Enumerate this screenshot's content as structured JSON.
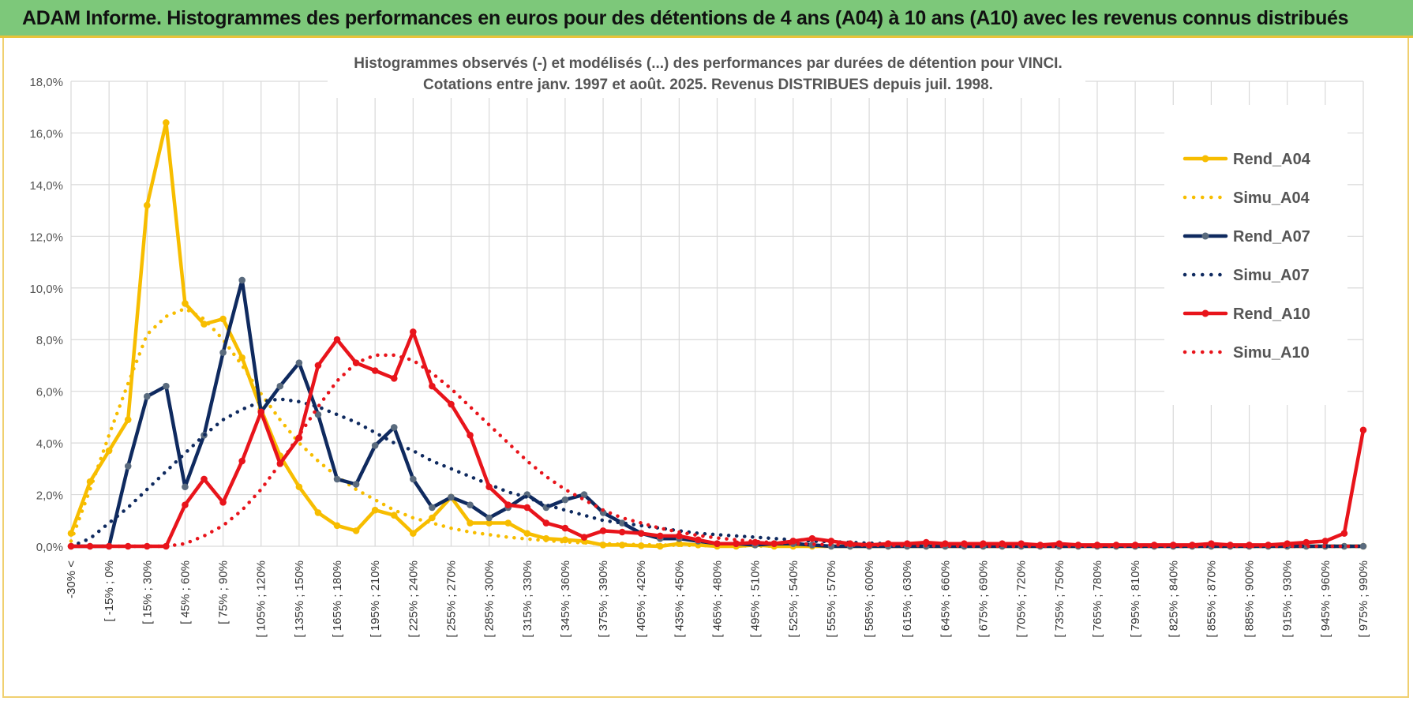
{
  "banner": {
    "title": "ADAM Informe. Histogrammes des performances en euros pour des détentions de 4 ans (A04) à 10 ans (A10) avec les revenus connus distribués",
    "color": "#7dc87a"
  },
  "chart_data": {
    "type": "line",
    "title": "Histogrammes observés (-) et modélisés (...) des performances par durées de détention pour VINCI.",
    "subtitle": "Cotations entre janv. 1997 et août. 2025. Revenus DISTRIBUES depuis juil. 1998.",
    "xlabel": "",
    "ylabel": "",
    "ylim": [
      0,
      18
    ],
    "yticks": [
      "0,0%",
      "2,0%",
      "4,0%",
      "6,0%",
      "8,0%",
      "10,0%",
      "12,0%",
      "14,0%",
      "16,0%",
      "18,0%"
    ],
    "grid": true,
    "legend_position": "top-right",
    "category_labels": [
      "-30% <",
      "[ -15% ; 0%",
      "[ 15% ; 30%",
      "[ 45% ; 60%",
      "[ 75% ; 90%",
      "[ 105% ; 120%",
      "[ 135% ; 150%",
      "[ 165% ; 180%",
      "[ 195% ; 210%",
      "[ 225% ; 240%",
      "[ 255% ; 270%",
      "[ 285% ; 300%",
      "[ 315% ; 330%",
      "[ 345% ; 360%",
      "[ 375% ; 390%",
      "[ 405% ; 420%",
      "[ 435% ; 450%",
      "[ 465% ; 480%",
      "[ 495% ; 510%",
      "[ 525% ; 540%",
      "[ 555% ; 570%",
      "[ 585% ; 600%",
      "[ 615% ; 630%",
      "[ 645% ; 660%",
      "[ 675% ; 690%",
      "[ 705% ; 720%",
      "[ 735% ; 750%",
      "[ 765% ; 780%",
      "[ 795% ; 810%",
      "[ 825% ; 840%",
      "[ 855% ; 870%",
      "[ 885% ; 900%",
      "[ 915% ; 930%",
      "[ 945% ; 960%",
      "[ 975% ; 990%"
    ],
    "num_categories": 69,
    "series": [
      {
        "name": "Rend_A04",
        "color": "#f7bd00",
        "style": "solid",
        "values": [
          0.5,
          2.5,
          3.7,
          4.9,
          13.2,
          16.4,
          9.4,
          8.6,
          8.8,
          7.3,
          5.3,
          3.5,
          2.3,
          1.3,
          0.8,
          0.6,
          1.4,
          1.2,
          0.5,
          1.1,
          1.9,
          0.9,
          0.9,
          0.9,
          0.5,
          0.3,
          0.25,
          0.2,
          0.05,
          0.05,
          0.02,
          0,
          0.1,
          0.05,
          0,
          0,
          0.05,
          0,
          0,
          0,
          0,
          0,
          0,
          0,
          0,
          0,
          0,
          0,
          0,
          0,
          0,
          0,
          0,
          0,
          0,
          0,
          0,
          0,
          0,
          0,
          0,
          0,
          0,
          0,
          0,
          0,
          0,
          0,
          0
        ]
      },
      {
        "name": "Simu_A04",
        "color": "#f7bd00",
        "style": "dotted",
        "values": [
          0.2,
          2.2,
          4.3,
          6.3,
          8.2,
          8.9,
          9.2,
          8.8,
          8.0,
          7.0,
          5.9,
          4.9,
          4.0,
          3.3,
          2.7,
          2.2,
          1.8,
          1.4,
          1.1,
          0.9,
          0.7,
          0.55,
          0.45,
          0.35,
          0.28,
          0.22,
          0.17,
          0.13,
          0.1,
          0.08,
          0.06,
          0.05,
          0.04,
          0.03,
          0.02,
          0.02,
          0.01,
          0.01,
          0.01,
          0,
          0,
          0,
          0,
          0,
          0,
          0,
          0,
          0,
          0,
          0,
          0,
          0,
          0,
          0,
          0,
          0,
          0,
          0,
          0,
          0,
          0,
          0,
          0,
          0,
          0,
          0,
          0,
          0,
          0
        ]
      },
      {
        "name": "Rend_A07",
        "color": "#0f2a5f",
        "style": "solid",
        "values": [
          0,
          0,
          0,
          3.1,
          5.8,
          6.2,
          2.3,
          4.3,
          7.5,
          10.3,
          5.2,
          6.2,
          7.1,
          5.1,
          2.6,
          2.4,
          3.9,
          4.6,
          2.6,
          1.5,
          1.9,
          1.6,
          1.1,
          1.5,
          2.0,
          1.5,
          1.8,
          2.0,
          1.3,
          0.9,
          0.5,
          0.3,
          0.3,
          0.2,
          0.1,
          0.1,
          0.05,
          0.1,
          0.1,
          0.05,
          0,
          0,
          0,
          0,
          0,
          0,
          0,
          0,
          0,
          0,
          0,
          0,
          0,
          0,
          0,
          0,
          0,
          0,
          0,
          0,
          0,
          0,
          0,
          0,
          0,
          0,
          0,
          0,
          0
        ]
      },
      {
        "name": "Simu_A07",
        "color": "#0f2a5f",
        "style": "dotted",
        "values": [
          0,
          0.3,
          0.9,
          1.5,
          2.2,
          2.9,
          3.6,
          4.3,
          4.9,
          5.3,
          5.6,
          5.7,
          5.6,
          5.4,
          5.1,
          4.8,
          4.4,
          4.0,
          3.7,
          3.3,
          3.0,
          2.7,
          2.4,
          2.1,
          1.9,
          1.6,
          1.4,
          1.2,
          1.0,
          0.9,
          0.8,
          0.7,
          0.6,
          0.5,
          0.45,
          0.4,
          0.35,
          0.3,
          0.25,
          0.2,
          0.18,
          0.15,
          0.12,
          0.1,
          0.08,
          0.07,
          0.06,
          0.05,
          0.04,
          0.03,
          0.03,
          0.02,
          0.02,
          0.01,
          0.01,
          0.01,
          0,
          0,
          0,
          0,
          0,
          0,
          0,
          0,
          0,
          0,
          0,
          0,
          0
        ]
      },
      {
        "name": "Rend_A10",
        "color": "#e8141b",
        "style": "solid",
        "values": [
          0,
          0,
          0,
          0,
          0,
          0,
          1.6,
          2.6,
          1.7,
          3.3,
          5.2,
          3.2,
          4.2,
          7.0,
          8.0,
          7.1,
          6.8,
          6.5,
          8.3,
          6.2,
          5.5,
          4.3,
          2.3,
          1.6,
          1.5,
          0.9,
          0.7,
          0.35,
          0.6,
          0.55,
          0.5,
          0.4,
          0.4,
          0.25,
          0.1,
          0.1,
          0.15,
          0.1,
          0.2,
          0.3,
          0.2,
          0.1,
          0.05,
          0.1,
          0.1,
          0.15,
          0.1,
          0.1,
          0.1,
          0.1,
          0.1,
          0.05,
          0.1,
          0.05,
          0.05,
          0.05,
          0.05,
          0.05,
          0.05,
          0.05,
          0.1,
          0.05,
          0.05,
          0.05,
          0.1,
          0.15,
          0.2,
          0.5,
          4.5
        ]
      },
      {
        "name": "Simu_A10",
        "color": "#e8141b",
        "style": "dotted",
        "values": [
          0,
          0,
          0,
          0,
          0,
          0,
          0.1,
          0.4,
          0.8,
          1.4,
          2.2,
          3.2,
          4.3,
          5.4,
          6.4,
          7.1,
          7.4,
          7.4,
          7.2,
          6.7,
          6.1,
          5.4,
          4.7,
          4.0,
          3.3,
          2.7,
          2.2,
          1.8,
          1.4,
          1.1,
          0.9,
          0.7,
          0.55,
          0.42,
          0.32,
          0.25,
          0.19,
          0.14,
          0.11,
          0.08,
          0.06,
          0.05,
          0.04,
          0.03,
          0.02,
          0.02,
          0.01,
          0.01,
          0,
          0,
          0,
          0,
          0,
          0,
          0,
          0,
          0,
          0,
          0,
          0,
          0,
          0,
          0,
          0,
          0,
          0,
          0,
          0,
          0
        ]
      }
    ]
  }
}
